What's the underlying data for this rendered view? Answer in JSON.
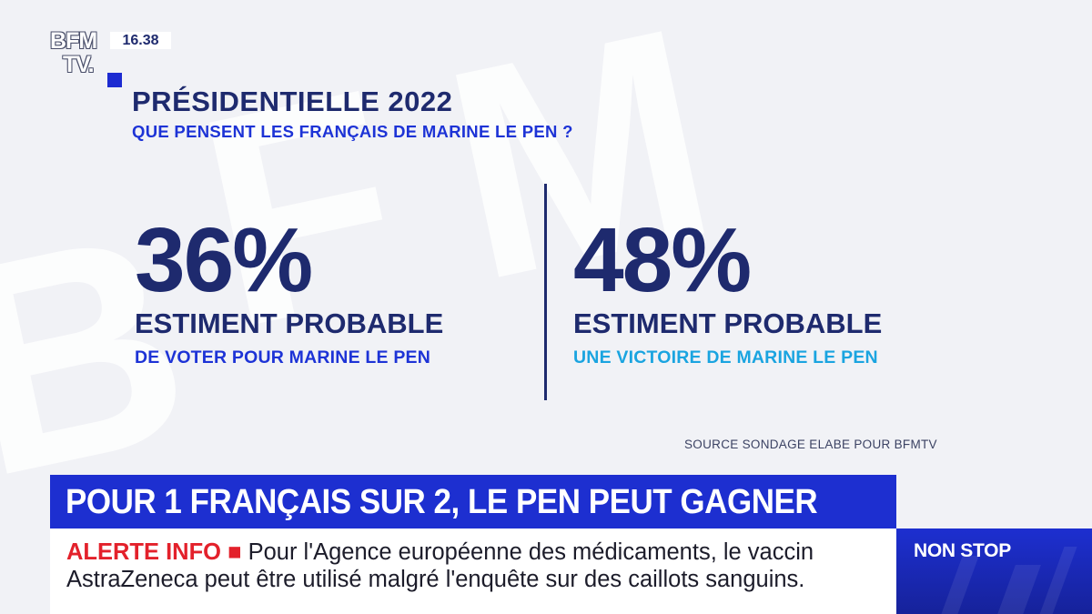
{
  "channel": {
    "logo_line1": "BFM",
    "logo_line2": "TV.",
    "time": "16.38"
  },
  "graphic": {
    "title": "PRÉSIDENTIELLE 2022",
    "subtitle": "QUE PENSENT LES FRANÇAIS DE MARINE LE PEN ?",
    "stats": [
      {
        "value": "36%",
        "label": "ESTIMENT PROBABLE",
        "description": "DE VOTER POUR MARINE LE PEN",
        "description_color": "#1d33d6"
      },
      {
        "value": "48%",
        "label": "ESTIMENT PROBABLE",
        "description": "UNE VICTOIRE DE MARINE LE PEN",
        "description_color": "#1aa4e0"
      }
    ],
    "source": "SOURCE  SONDAGE ELABE POUR BFMTV"
  },
  "headline": {
    "text": "POUR 1 FRANÇAIS SUR 2, LE PEN PEUT GAGNER"
  },
  "ticker": {
    "tag": "ALERTE INFO",
    "line1": "Pour l'Agence européenne des médicaments, le vaccin",
    "line2": "AstraZeneca peut être utilisé malgré l'enquête sur des caillots sanguins."
  },
  "badge": {
    "label": "NON STOP"
  },
  "colors": {
    "navy": "#1e2a6e",
    "brand_blue": "#1d2fd0",
    "alert_red": "#e3212b",
    "light_blue": "#1aa4e0"
  }
}
